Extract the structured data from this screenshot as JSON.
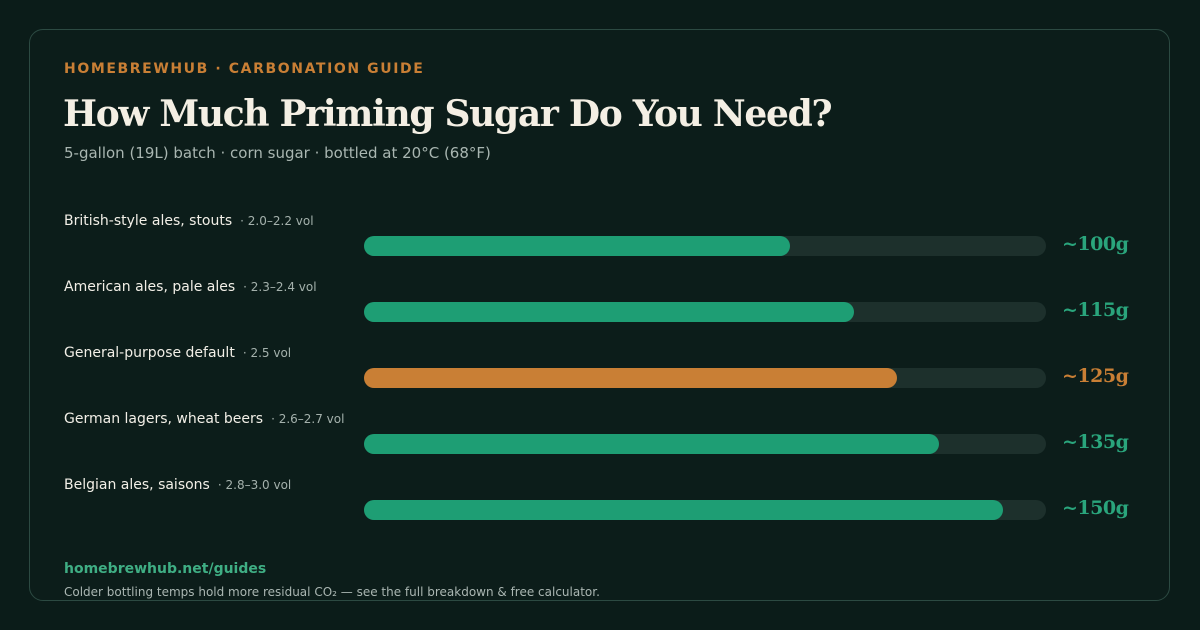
{
  "header": {
    "eyebrow": "HOMEBREWHUB · CARBONATION GUIDE",
    "title": "How Much Priming Sugar Do You Need?",
    "subtitle": "5-gallon (19L) batch · corn sugar · bottled at 20°C (68°F)"
  },
  "colors": {
    "accent_green": "#1e9e74",
    "accent_orange": "#c97f35",
    "track": "#1d302c",
    "value_green": "#2aa57c"
  },
  "chart_data": {
    "type": "bar",
    "orientation": "horizontal",
    "title": "How Much Priming Sugar Do You Need?",
    "xlim": [
      0,
      160
    ],
    "unit": "g",
    "grid": false,
    "categories": [
      "British-style ales, stouts",
      "American ales, pale ales",
      "General-purpose default",
      "German lagers, wheat beers",
      "Belgian ales, saisons"
    ],
    "co2_volumes": [
      "· 2.0–2.2 vol",
      "· 2.3–2.4 vol",
      "· 2.5 vol",
      "· 2.6–2.7 vol",
      "· 2.8–3.0 vol"
    ],
    "values": [
      100,
      115,
      125,
      135,
      150
    ],
    "value_labels": [
      "~100g",
      "~115g",
      "~125g",
      "~135g",
      "~150g"
    ],
    "highlighted_index": 2
  },
  "footer": {
    "link": "homebrewhub.net/guides",
    "note": "Colder bottling temps hold more residual CO₂ — see the full breakdown & free calculator."
  }
}
